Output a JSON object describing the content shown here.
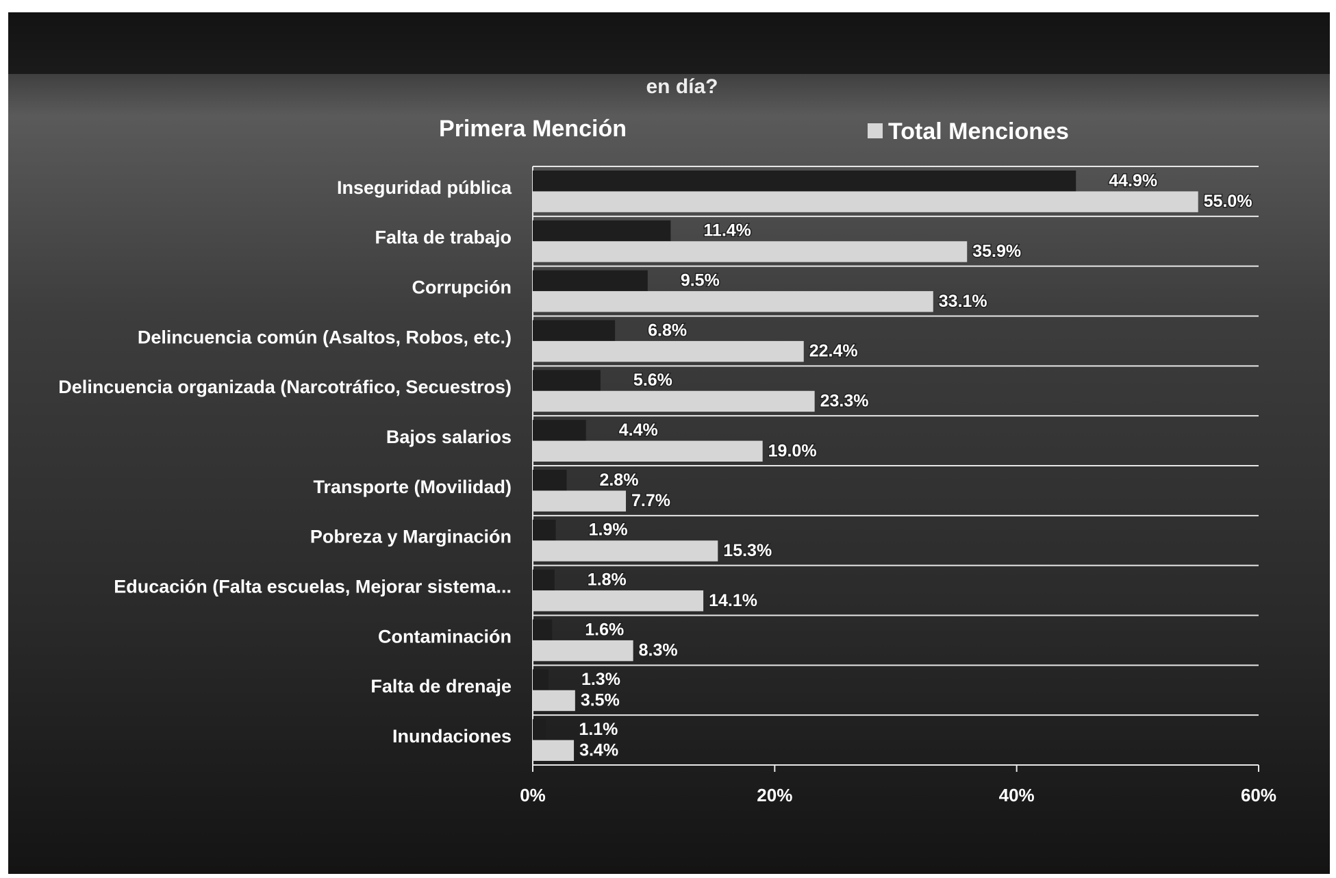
{
  "chart_data": {
    "type": "bar",
    "orientation": "horizontal",
    "title": "en día?",
    "categories": [
      "Inseguridad pública",
      "Falta de trabajo",
      "Corrupción",
      "Delincuencia común (Asaltos, Robos, etc.)",
      "Delincuencia organizada (Narcotráfico, Secuestros)",
      "Bajos salarios",
      "Transporte (Movilidad)",
      "Pobreza y Marginación",
      "Educación (Falta escuelas, Mejorar sistema...",
      "Contaminación",
      "Falta de drenaje",
      "Inundaciones"
    ],
    "series": [
      {
        "name": "Primera Mención",
        "color": "#1e1e1e",
        "values": [
          44.9,
          11.4,
          9.5,
          6.8,
          5.6,
          4.4,
          2.8,
          1.9,
          1.8,
          1.6,
          1.3,
          1.1
        ],
        "value_labels": [
          "44.9%",
          "11.4%",
          "9.5%",
          "6.8%",
          "5.6%",
          "4.4%",
          "2.8%",
          "1.9%",
          "1.8%",
          "1.6%",
          "1.3%",
          "1.1%"
        ]
      },
      {
        "name": "Total Menciones",
        "color": "#d6d6d6",
        "values": [
          55.0,
          35.9,
          33.1,
          22.4,
          23.3,
          19.0,
          7.7,
          15.3,
          14.1,
          8.3,
          3.5,
          3.4
        ],
        "value_labels": [
          "55.0%",
          "35.9%",
          "33.1%",
          "22.4%",
          "23.3%",
          "19.0%",
          "7.7%",
          "15.3%",
          "14.1%",
          "8.3%",
          "3.5%",
          "3.4%"
        ]
      }
    ],
    "xlim": [
      0,
      60
    ],
    "xticks": [
      {
        "value": 0,
        "label": "0%"
      },
      {
        "value": 20,
        "label": "20%"
      },
      {
        "value": 40,
        "label": "40%"
      },
      {
        "value": 60,
        "label": "60%"
      }
    ]
  }
}
